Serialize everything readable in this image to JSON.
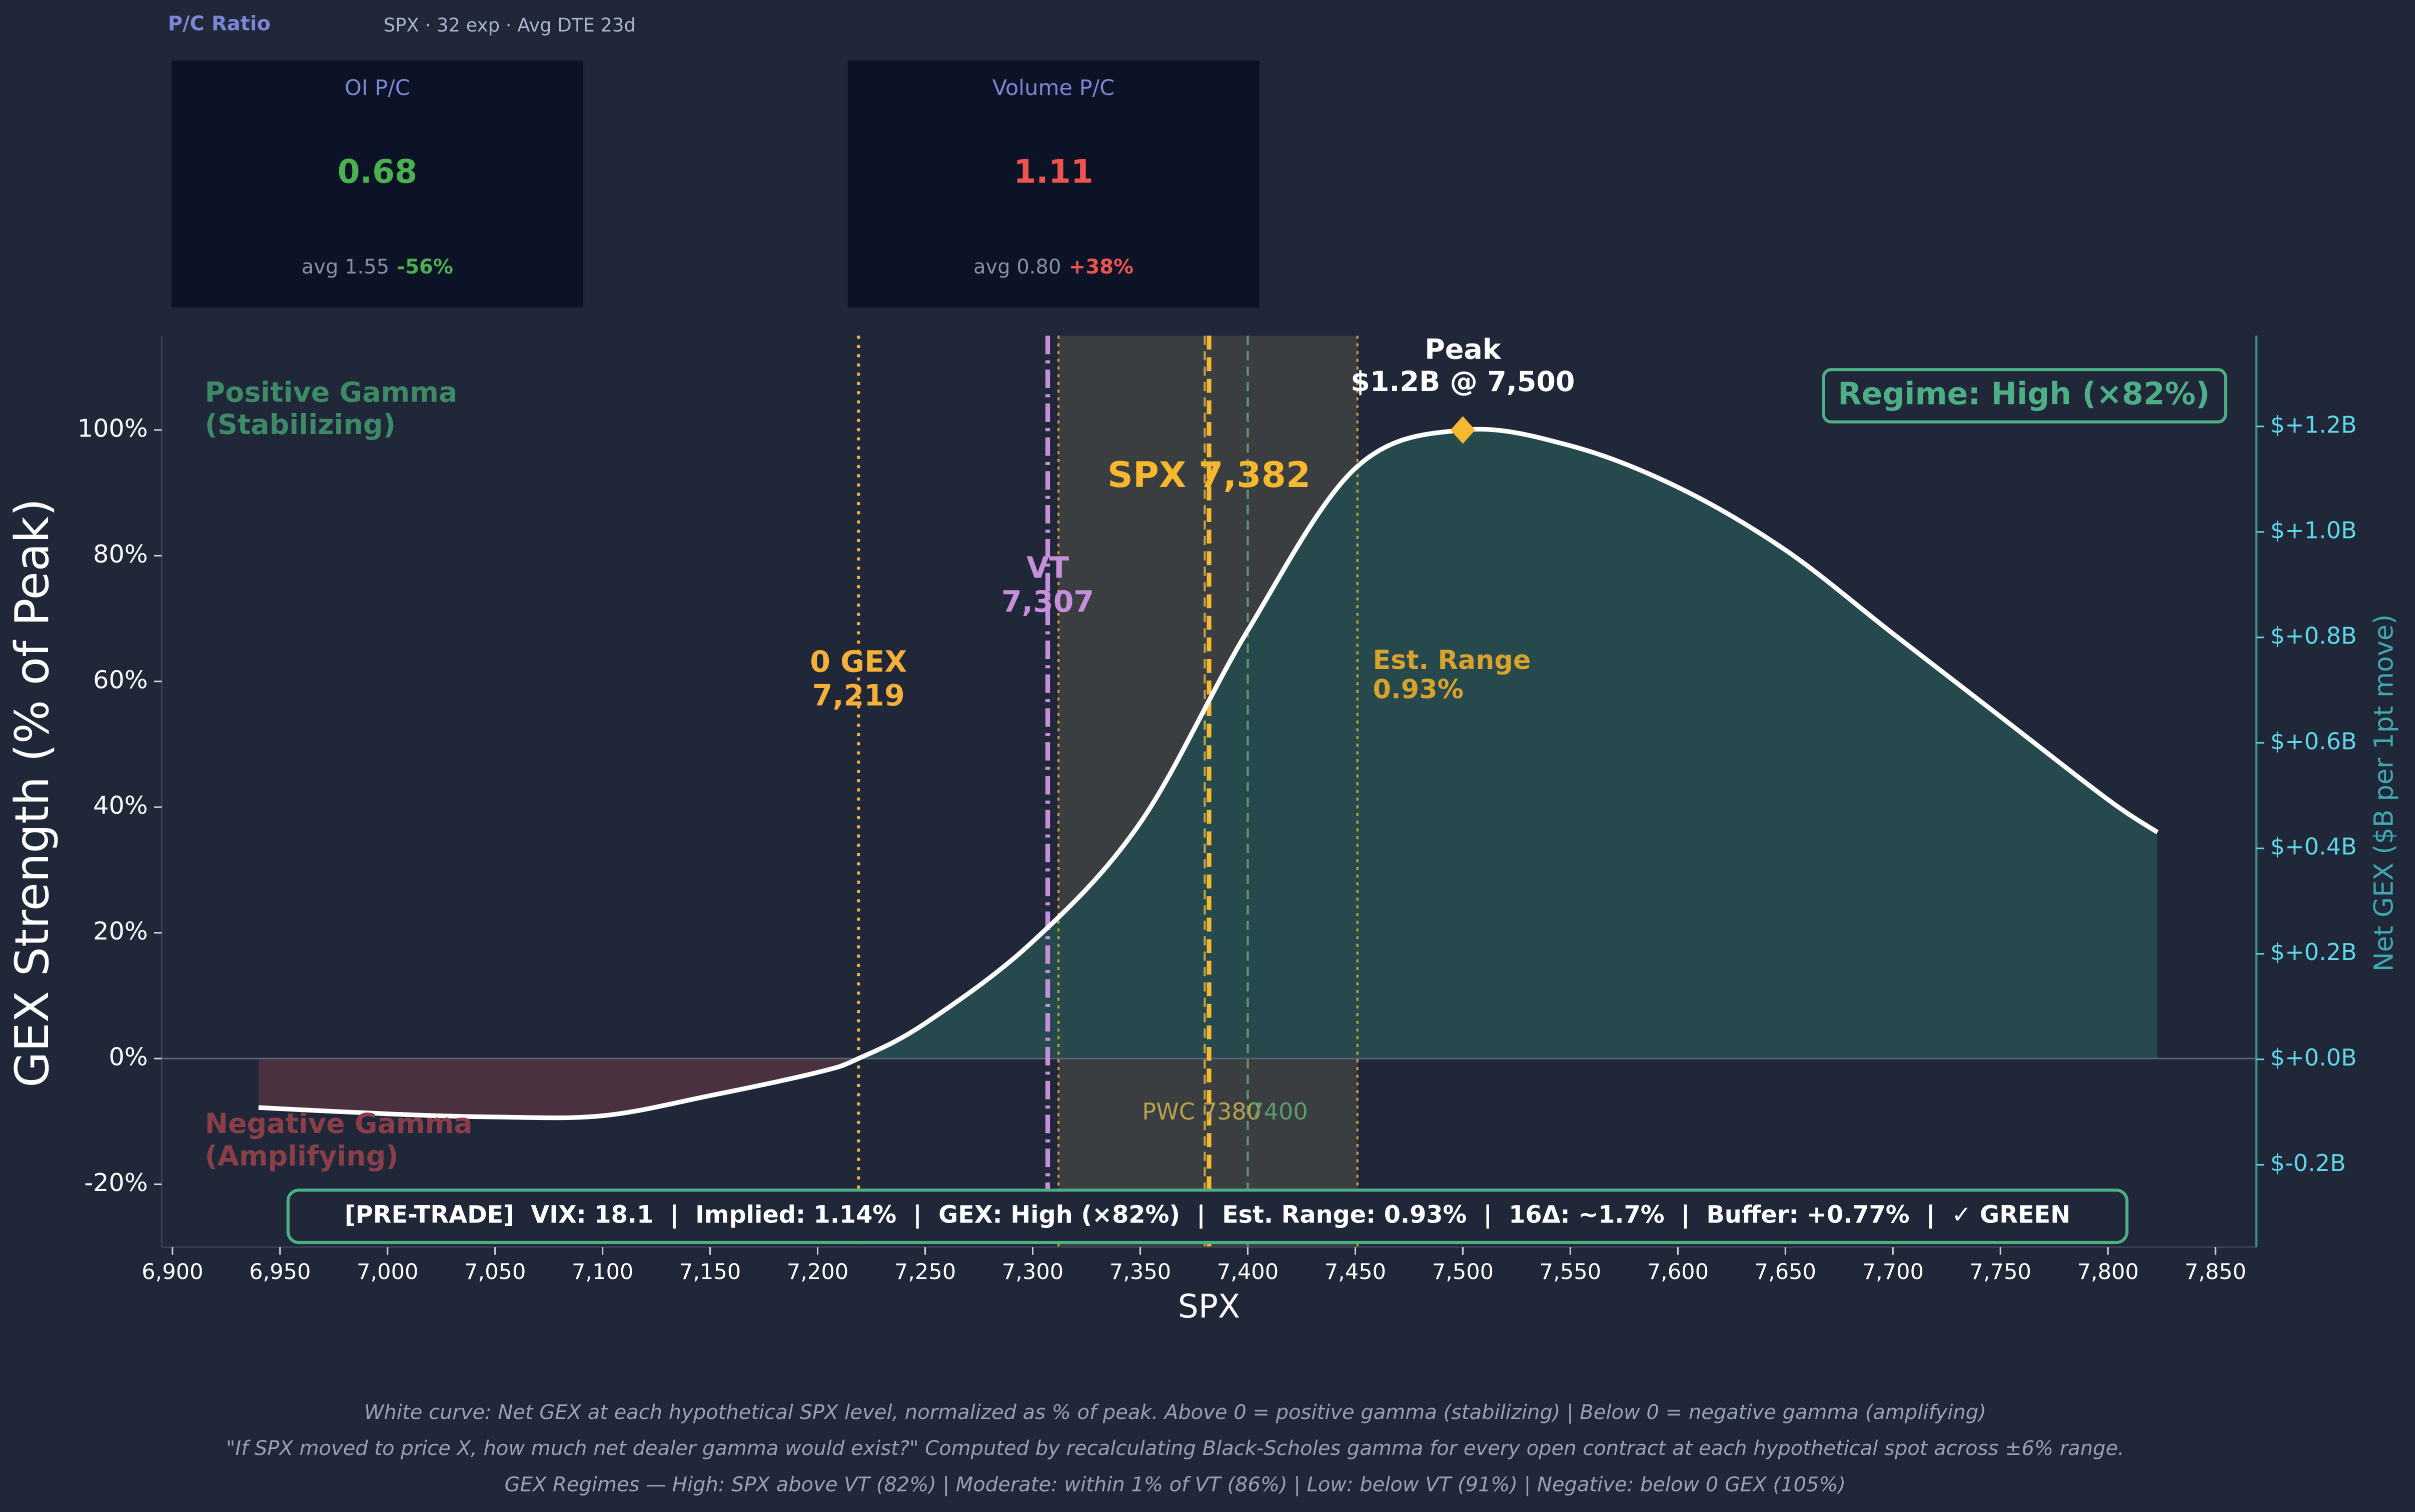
{
  "header": {
    "title": "P/C Ratio",
    "subtitle": "SPX · 32 exp · Avg DTE 23d",
    "cards": [
      {
        "title": "OI P/C",
        "value": "0.68",
        "avg": "avg 1.55",
        "change": "-56%",
        "color": "#4caf50"
      },
      {
        "title": "Volume P/C",
        "value": "1.11",
        "avg": "avg 0.80",
        "change": "+38%",
        "color": "#ef5350"
      }
    ]
  },
  "chart_data": {
    "type": "line",
    "x_label": "SPX",
    "y_label": "GEX Strength (% of Peak)",
    "y2_label": "Net GEX ($B per 1pt move)",
    "x": [
      6940,
      7000,
      7050,
      7100,
      7150,
      7200,
      7219,
      7250,
      7300,
      7350,
      7400,
      7450,
      7500,
      7550,
      7600,
      7650,
      7700,
      7750,
      7800,
      7823
    ],
    "series": [
      {
        "name": "Net GEX",
        "color": "#ffffff",
        "values": [
          -7.8,
          -8.8,
          -9.3,
          -9.1,
          -5.9,
          -2.2,
          0,
          5.6,
          18.6,
          37.5,
          68.1,
          93.9,
          100,
          97.5,
          90.9,
          80.9,
          67.6,
          54.4,
          41.2,
          36.0
        ]
      }
    ],
    "positive_fill": "#26494d",
    "negative_fill": "#4a3140",
    "xlim": [
      6895,
      7869
    ],
    "ylim": [
      -30,
      115
    ],
    "y2lim": [
      -0.356,
      1.372
    ],
    "xticks": [
      {
        "value": 6900,
        "label": "6,900"
      },
      {
        "value": 6950,
        "label": "6,950"
      },
      {
        "value": 7000,
        "label": "7,000"
      },
      {
        "value": 7050,
        "label": "7,050"
      },
      {
        "value": 7100,
        "label": "7,100"
      },
      {
        "value": 7150,
        "label": "7,150"
      },
      {
        "value": 7200,
        "label": "7,200"
      },
      {
        "value": 7250,
        "label": "7,250"
      },
      {
        "value": 7300,
        "label": "7,300"
      },
      {
        "value": 7350,
        "label": "7,350"
      },
      {
        "value": 7400,
        "label": "7,400"
      },
      {
        "value": 7450,
        "label": "7,450"
      },
      {
        "value": 7500,
        "label": "7,500"
      },
      {
        "value": 7550,
        "label": "7,550"
      },
      {
        "value": 7600,
        "label": "7,600"
      },
      {
        "value": 7650,
        "label": "7,650"
      },
      {
        "value": 7700,
        "label": "7,700"
      },
      {
        "value": 7750,
        "label": "7,750"
      },
      {
        "value": 7800,
        "label": "7,800"
      },
      {
        "value": 7850,
        "label": "7,850"
      }
    ],
    "yticks": [
      {
        "value": -20,
        "label": "-20%"
      },
      {
        "value": 0,
        "label": "0%"
      },
      {
        "value": 20,
        "label": "20%"
      },
      {
        "value": 40,
        "label": "40%"
      },
      {
        "value": 60,
        "label": "60%"
      },
      {
        "value": 80,
        "label": "80%"
      },
      {
        "value": 100,
        "label": "100%"
      }
    ],
    "y2ticks": [
      {
        "value": -0.2,
        "label": "$-0.2B"
      },
      {
        "value": 0,
        "label": "$+0.0B"
      },
      {
        "value": 0.2,
        "label": "$+0.2B"
      },
      {
        "value": 0.4,
        "label": "$+0.4B"
      },
      {
        "value": 0.6,
        "label": "$+0.6B"
      },
      {
        "value": 0.8,
        "label": "$+0.8B"
      },
      {
        "value": 1.0,
        "label": "$+1.0B"
      },
      {
        "value": 1.2,
        "label": "$+1.2B"
      }
    ],
    "est_range": {
      "from": 7312,
      "to": 7451,
      "label": [
        "Est. Range",
        "0.93%"
      ],
      "color": "#d9a22a"
    },
    "lines": [
      {
        "x": 7219,
        "label": [
          "0 GEX",
          "7,219"
        ],
        "color": "#f5b03a",
        "style": "dotted"
      },
      {
        "x": 7307,
        "label": [
          "VT",
          "7,307"
        ],
        "color": "#c58fd9",
        "style": "dashdot"
      },
      {
        "x": 7382,
        "label": [
          "SPX 7,382"
        ],
        "color": "#f5b82e",
        "style": "dashed"
      },
      {
        "x": 7380,
        "label": [
          "PWC 7380"
        ],
        "color": "#b9a04e",
        "style": "thin"
      },
      {
        "x": 7400,
        "label": [
          "7400"
        ],
        "color": "#5d9a6b",
        "style": "thin"
      }
    ],
    "peak": {
      "x": 7500,
      "value": 100,
      "label": [
        "Peak",
        "$1.2B @ 7,500"
      ],
      "color": "#f5b82e"
    },
    "positive_label": [
      "Positive Gamma",
      "(Stabilizing)"
    ],
    "negative_label": [
      "Negative Gamma",
      "(Amplifying)"
    ],
    "regime": "Regime: High (×82%)",
    "status": "[PRE-TRADE]  VIX: 18.1  |  Implied: 1.14%  |  GEX: High (×82%)  |  Est. Range: 0.93%  |  16Δ: ~1.7%  |  Buffer: +0.77%  |  ✓ GREEN"
  },
  "footnotes": [
    "White curve: Net GEX at each hypothetical SPX level, normalized as % of peak.  Above 0 = positive gamma (stabilizing)  |  Below 0 = negative gamma (amplifying)",
    "\"If SPX moved to price X, how much net dealer gamma would exist?\" Computed by recalculating Black-Scholes gamma for every open contract at each hypothetical spot across ±6% range.",
    "GEX Regimes — High: SPX above VT (82%)  |  Moderate: within 1% of VT (86%)  |  Low: below VT (91%)  |  Negative: below 0 GEX (105%)"
  ]
}
